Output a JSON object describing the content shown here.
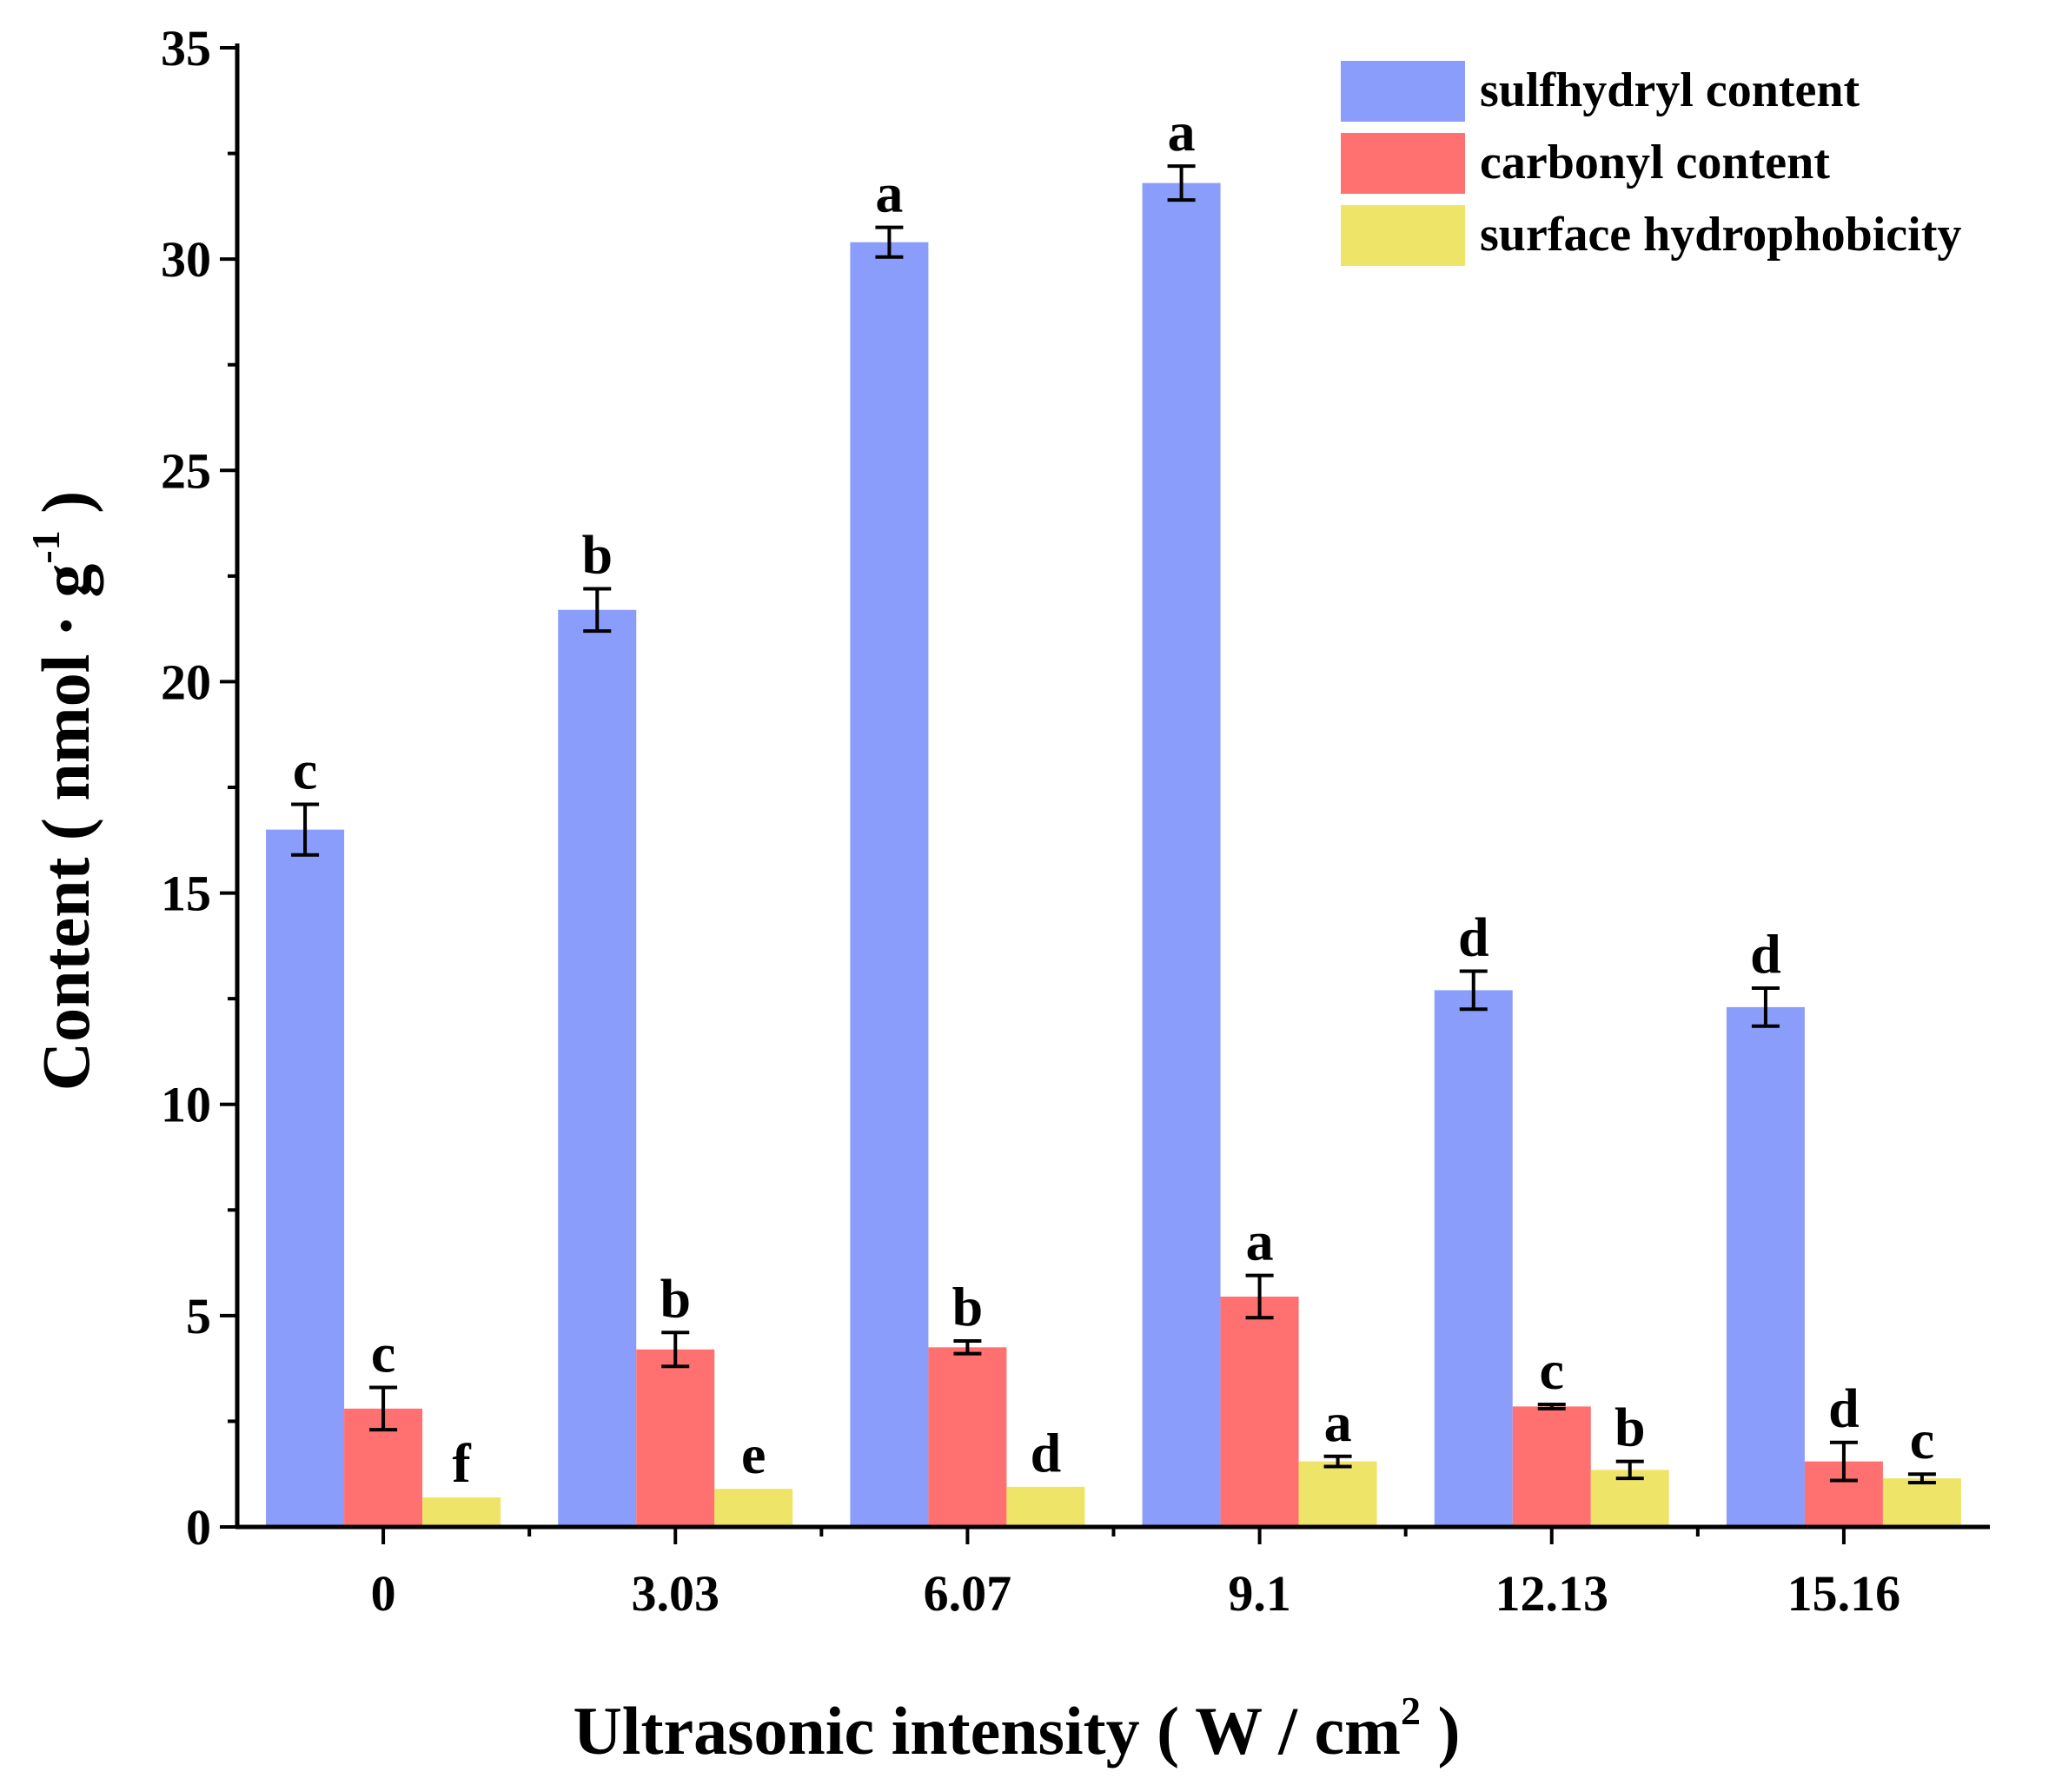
{
  "chart_data": {
    "type": "bar",
    "xlabel": {
      "main": "Ultrasonic intensity ( W / cm",
      "sup": "2",
      "end": " )"
    },
    "ylabel": {
      "main": "Content ( nmol · g",
      "sup": "-1",
      "end": " )"
    },
    "categories": [
      "0",
      "3.03",
      "6.07",
      "9.1",
      "12.13",
      "15.16"
    ],
    "ylim": [
      0,
      35
    ],
    "y_ticks": [
      0,
      5,
      10,
      15,
      20,
      25,
      30,
      35
    ],
    "y_tick_labels": [
      "0",
      "5",
      "10",
      "15",
      "20",
      "25",
      "30",
      "35"
    ],
    "legend_position": "top-right",
    "series": [
      {
        "name": "sulfhydryl content",
        "color": "#8b9dfa",
        "values": [
          16.5,
          21.7,
          30.4,
          31.8,
          12.7,
          12.3
        ],
        "errors": [
          0.6,
          0.5,
          0.35,
          0.4,
          0.45,
          0.45
        ],
        "letters": [
          "c",
          "b",
          "a",
          "a",
          "d",
          "d"
        ]
      },
      {
        "name": "carbonyl content",
        "color": "#ff7070",
        "values": [
          2.8,
          4.2,
          4.25,
          5.45,
          2.85,
          1.55
        ],
        "errors": [
          0.5,
          0.4,
          0.15,
          0.5,
          0.05,
          0.45
        ],
        "letters": [
          "c",
          "b",
          "b",
          "a",
          "c",
          "d"
        ]
      },
      {
        "name": "surface hydrophobicity",
        "color": "#eee468",
        "values": [
          0.7,
          0.9,
          0.95,
          1.55,
          1.35,
          1.15
        ],
        "errors": [
          0.0,
          0.0,
          0.0,
          0.12,
          0.2,
          0.1
        ],
        "letters": [
          "f",
          "e",
          "d",
          "a",
          "b",
          "c"
        ]
      }
    ]
  }
}
